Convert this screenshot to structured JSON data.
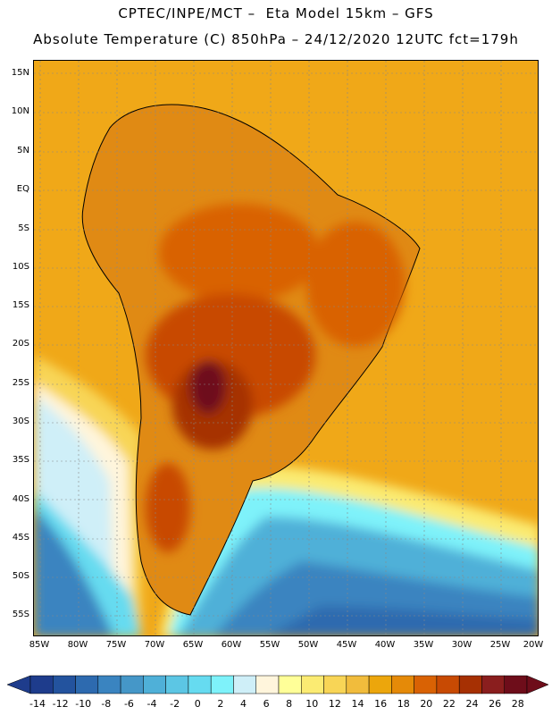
{
  "header": {
    "title_line1": "CPTEC/INPE/MCT –  Eta Model 15km – GFS",
    "title_line2": "Absolute Temperature (C) 850hPa – 24/12/2020 12UTC fct=179h"
  },
  "axes": {
    "lat_labels": [
      "15N",
      "10N",
      "5N",
      "EQ",
      "5S",
      "10S",
      "15S",
      "20S",
      "25S",
      "30S",
      "35S",
      "40S",
      "45S",
      "50S",
      "55S"
    ],
    "lon_labels": [
      "85W",
      "80W",
      "75W",
      "70W",
      "65W",
      "60W",
      "55W",
      "50W",
      "45W",
      "40W",
      "35W",
      "30W",
      "25W",
      "20W"
    ]
  },
  "colorbar": {
    "labels": [
      "-14",
      "-12",
      "-10",
      "-8",
      "-6",
      "-4",
      "-2",
      "0",
      "2",
      "4",
      "6",
      "8",
      "10",
      "12",
      "14",
      "16",
      "18",
      "20",
      "22",
      "24",
      "26",
      "28"
    ],
    "colors": [
      "#1e3c8c",
      "#23539e",
      "#2d6aaf",
      "#3a84c0",
      "#4597c8",
      "#4fb0d8",
      "#5cc6e4",
      "#66dbf0",
      "#7ef2fa",
      "#cfeff8",
      "#fff5dc",
      "#ffff98",
      "#fbeb72",
      "#f8d556",
      "#f1bc3c",
      "#eca60c",
      "#e58a08",
      "#d96204",
      "#c84a03",
      "#a63003",
      "#8a1e1e",
      "#6e0d1a"
    ],
    "under_color": "#1e3c8c",
    "over_color": "#6e0d1a"
  },
  "map": {
    "background_color": "#f0a818",
    "land_color": "#e08a14",
    "hot_core_color": "#a63003",
    "cold_core_color": "#3a84c0"
  }
}
